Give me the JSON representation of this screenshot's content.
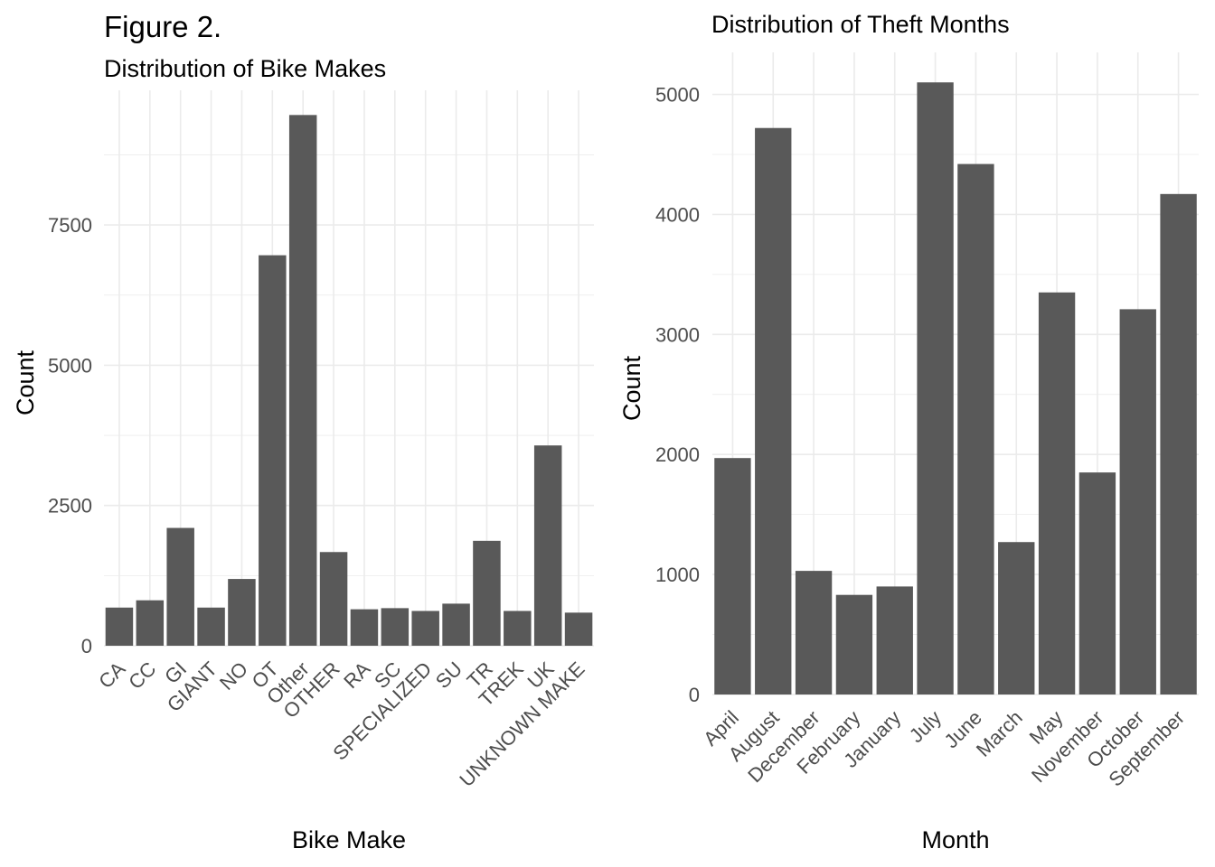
{
  "figure_label": "Figure 2.",
  "chart_data": [
    {
      "type": "bar",
      "title": "Distribution of Bike Makes",
      "xlabel": "Bike Make",
      "ylabel": "Count",
      "categories": [
        "CA",
        "CC",
        "GI",
        "GIANT",
        "NO",
        "OT",
        "Other",
        "OTHER",
        "RA",
        "SC",
        "SPECIALIZED",
        "SU",
        "TR",
        "TREK",
        "UK",
        "UNKNOWN MAKE"
      ],
      "values": [
        680,
        810,
        2100,
        680,
        1190,
        6960,
        9460,
        1670,
        650,
        670,
        620,
        750,
        1870,
        620,
        3570,
        590
      ],
      "y_ticks": [
        0,
        2500,
        5000,
        7500
      ],
      "ylim": [
        0,
        9900
      ],
      "grid": true,
      "bar_color": "#595959"
    },
    {
      "type": "bar",
      "title": "Distribution of Theft Months",
      "xlabel": "Month",
      "ylabel": "Count",
      "categories": [
        "April",
        "August",
        "December",
        "February",
        "January",
        "July",
        "June",
        "March",
        "May",
        "November",
        "October",
        "September"
      ],
      "values": [
        1970,
        4720,
        1030,
        830,
        900,
        5100,
        4420,
        1270,
        3350,
        1850,
        3210,
        4170
      ],
      "y_ticks": [
        0,
        1000,
        2000,
        3000,
        4000,
        5000
      ],
      "ylim": [
        0,
        5350
      ],
      "grid": true,
      "bar_color": "#595959"
    }
  ]
}
